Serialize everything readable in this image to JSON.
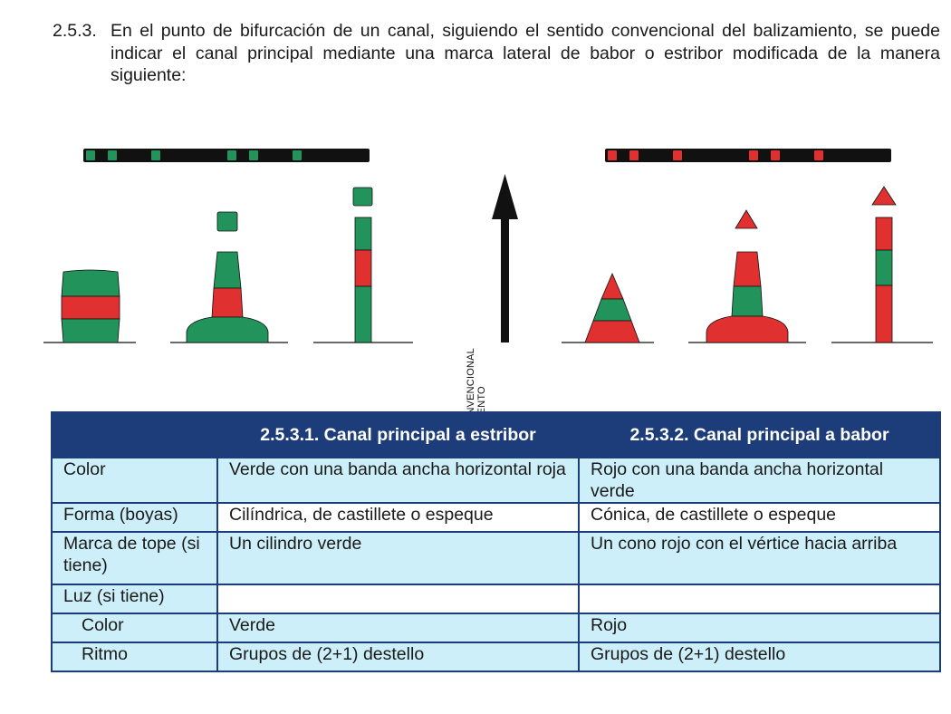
{
  "section": {
    "number": "2.5.3.",
    "text": "En el punto de bifurcación de un canal, siguiendo el sentido convencional del balizamiento, se puede indicar el canal principal mediante una marca lateral de babor o estribor  modificada de la manera siguiente:"
  },
  "figure": {
    "direction_label_line1": "SENTIDO CONVENCIONAL",
    "direction_label_line2": "DE BALIZAMIENTO",
    "colors": {
      "green": "#22935a",
      "red": "#e03030",
      "black": "#111111"
    }
  },
  "table": {
    "headers": [
      "",
      "2.5.3.1. Canal principal a estribor",
      "2.5.3.2. Canal principal a babor"
    ],
    "rows": [
      {
        "label": "Color",
        "estribor": "Verde con una banda ancha horizontal roja",
        "babor": "Rojo con una banda ancha horizontal verde"
      },
      {
        "label": "Forma (boyas)",
        "estribor": "Cilíndrica, de castillete o espeque",
        "babor": "Cónica, de castillete o espeque"
      },
      {
        "label": "Marca de tope (si tiene)",
        "estribor": "Un cilindro verde",
        "babor": "Un cono rojo con el vértice hacia arriba"
      },
      {
        "label": "Luz (si tiene)",
        "estribor": "",
        "babor": ""
      },
      {
        "label": "Color",
        "estribor": "Verde",
        "babor": "Rojo"
      },
      {
        "label": "Ritmo",
        "estribor": "Grupos de (2+1) destello",
        "babor": "Grupos de (2+1) destello"
      }
    ]
  }
}
